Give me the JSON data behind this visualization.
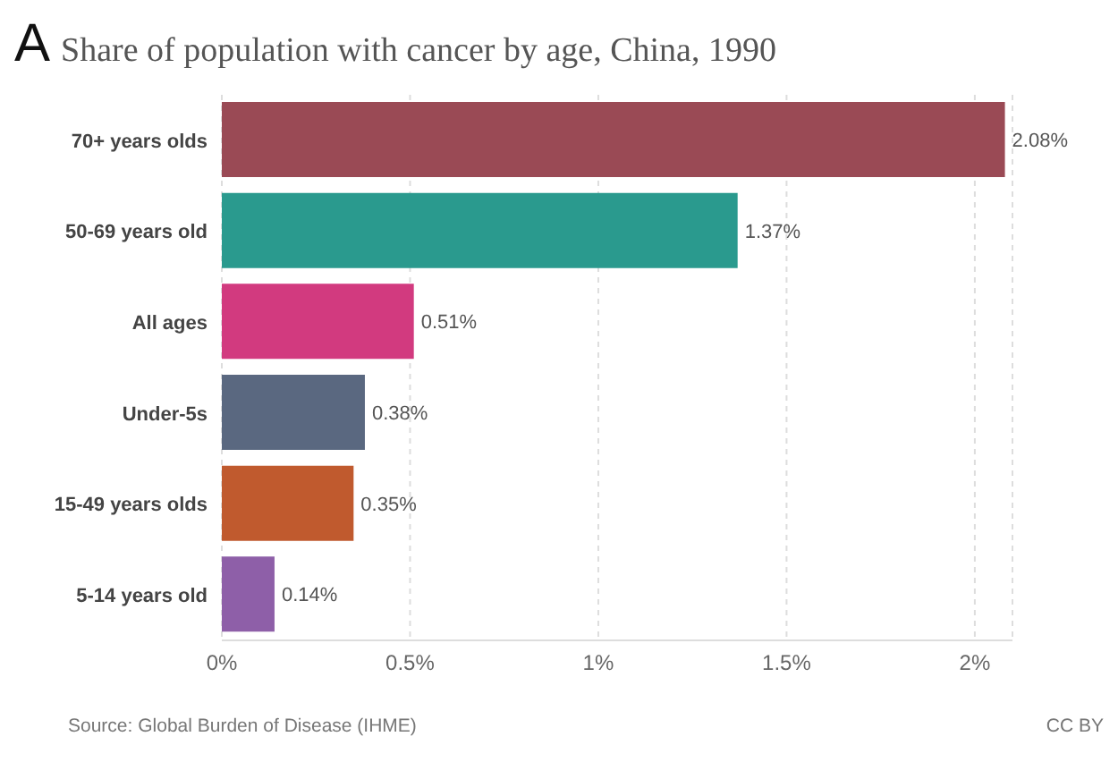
{
  "chart_data": {
    "type": "bar",
    "orientation": "horizontal",
    "title": "Share of population with cancer by age, China, 1990",
    "categories": [
      "70+ years olds",
      "50-69 years old",
      "All ages",
      "Under-5s",
      "15-49 years olds",
      "5-14 years old"
    ],
    "values": [
      2.08,
      1.37,
      0.51,
      0.38,
      0.35,
      0.14
    ],
    "colors": [
      "#9a4a55",
      "#2a9a8e",
      "#d23a7f",
      "#5a6880",
      "#c05a2e",
      "#8e5fa8"
    ],
    "value_labels": [
      "2.08%",
      "1.37%",
      "0.51%",
      "0.38%",
      "0.35%",
      "0.14%"
    ],
    "xlim": [
      0,
      2.1
    ],
    "xticks": [
      {
        "value": 0,
        "label": "0%"
      },
      {
        "value": 0.5,
        "label": "0.5%"
      },
      {
        "value": 1,
        "label": "1%"
      },
      {
        "value": 1.5,
        "label": "1.5%"
      },
      {
        "value": 2,
        "label": "2%"
      }
    ],
    "grid": "x",
    "legend": false,
    "annotations": [
      "A",
      "Source: Global Burden of Disease (IHME)",
      "CC BY"
    ]
  }
}
